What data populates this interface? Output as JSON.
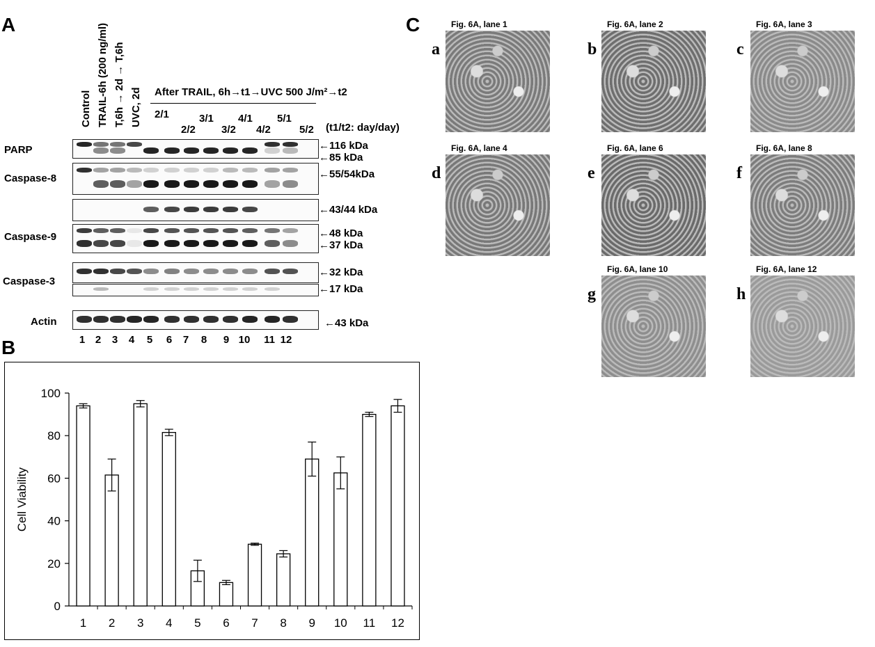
{
  "panels": {
    "A": "A",
    "B": "B",
    "C": "C"
  },
  "panel_a": {
    "lane_headers": [
      "Control",
      "TRAIL-6h (200 ng/ml)",
      "T,6h → 2d → T,6h",
      "UVC, 2d"
    ],
    "after_trail_header": "After TRAIL, 6h→t1→UVC 500 J/m²→t2",
    "time_labels_top": [
      "2/1",
      "3/1",
      "4/1",
      "5/1"
    ],
    "time_labels_bottom": [
      "2/2",
      "3/2",
      "4/2",
      "5/2"
    ],
    "time_note": "(t1/t2: day/day)",
    "rows": [
      {
        "label": "PARP",
        "markers": [
          "116 kDa",
          "85 kDa"
        ]
      },
      {
        "label": "Caspase-8",
        "markers": [
          "55/54kDa"
        ]
      },
      {
        "label": "",
        "markers": [
          "43/44 kDa"
        ]
      },
      {
        "label": "Caspase-9",
        "markers": [
          "48 kDa",
          "37 kDa"
        ]
      },
      {
        "label": "Caspase-3",
        "markers": [
          "32 kDa"
        ]
      },
      {
        "label": "",
        "markers": [
          "17 kDa"
        ]
      },
      {
        "label": "Actin",
        "markers": [
          "43 kDa"
        ]
      }
    ],
    "lane_numbers": [
      "1",
      "2",
      "3",
      "4",
      "5",
      "6",
      "7",
      "8",
      "9",
      "10",
      "11",
      "12"
    ]
  },
  "chart_data": {
    "type": "bar",
    "categories": [
      "1",
      "2",
      "3",
      "4",
      "5",
      "6",
      "7",
      "8",
      "9",
      "10",
      "11",
      "12"
    ],
    "values": [
      94,
      61.5,
      95,
      81.5,
      16.5,
      11,
      29,
      24.5,
      69,
      62.5,
      90,
      94
    ],
    "errors": [
      1,
      7.5,
      1.5,
      1.5,
      5,
      1,
      0.5,
      1.5,
      8,
      7.5,
      1,
      3
    ],
    "title": "",
    "xlabel": "",
    "ylabel": "Cell Viability",
    "ylim": [
      0,
      100
    ],
    "yticks": [
      "0",
      "20",
      "40",
      "60",
      "80",
      "100"
    ],
    "grid": false
  },
  "panel_c": {
    "photos": [
      {
        "letter": "a",
        "title": "Fig. 6A, lane 1"
      },
      {
        "letter": "b",
        "title": "Fig. 6A, lane 2"
      },
      {
        "letter": "c",
        "title": "Fig. 6A, lane 3"
      },
      {
        "letter": "d",
        "title": "Fig. 6A, lane 4"
      },
      {
        "letter": "e",
        "title": "Fig. 6A, lane 6"
      },
      {
        "letter": "f",
        "title": "Fig. 6A, lane 8"
      },
      {
        "letter": "g",
        "title": "Fig. 6A, lane 10"
      },
      {
        "letter": "h",
        "title": "Fig. 6A, lane 12"
      }
    ]
  }
}
